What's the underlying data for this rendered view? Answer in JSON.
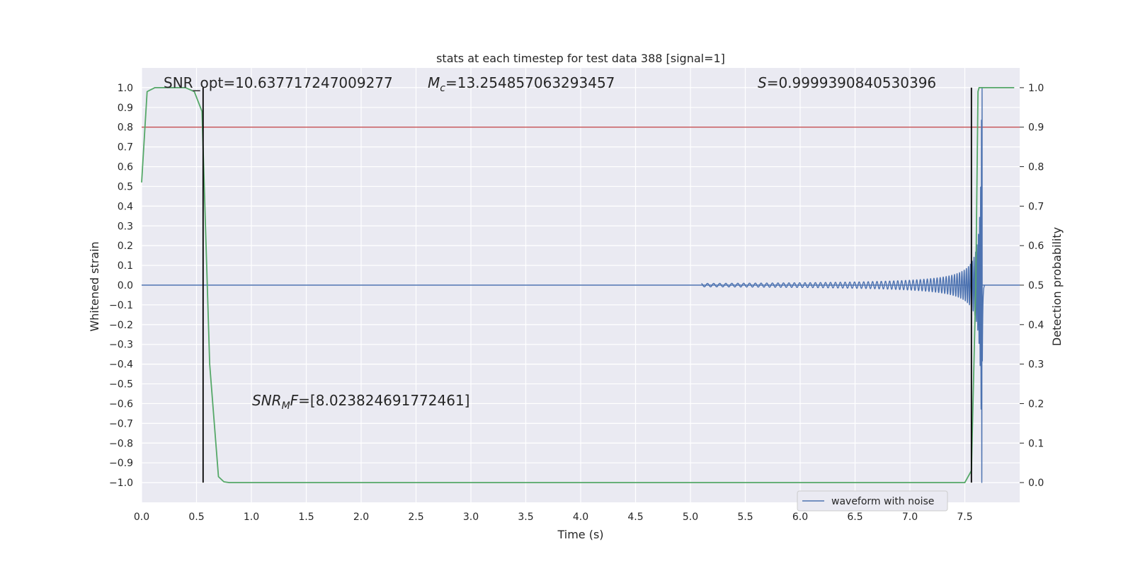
{
  "chart_data": {
    "type": "line",
    "title": "stats at each timestep for test data 388 [signal=1]",
    "xlabel": "Time (s)",
    "ylabel_left": "Whitened strain",
    "ylabel_right": "Detection probability",
    "xlim": [
      0,
      8.0
    ],
    "ylim_left": [
      -1.1,
      1.1
    ],
    "ylim_right": [
      -0.05,
      1.05
    ],
    "x_ticks": [
      "0.0",
      "0.5",
      "1.0",
      "1.5",
      "2.0",
      "2.5",
      "3.0",
      "3.5",
      "4.0",
      "4.5",
      "5.0",
      "5.5",
      "6.0",
      "6.5",
      "7.0",
      "7.5"
    ],
    "y_left_ticks": [
      "1.0",
      "0.9",
      "0.8",
      "0.7",
      "0.6",
      "0.5",
      "0.4",
      "0.3",
      "0.2",
      "0.1",
      "0.0",
      "−0.1",
      "−0.2",
      "−0.3",
      "−0.4",
      "−0.5",
      "−0.6",
      "−0.7",
      "−0.8",
      "−0.9",
      "−1.0"
    ],
    "y_right_ticks": [
      "1.0",
      "0.9",
      "0.8",
      "0.7",
      "0.6",
      "0.5",
      "0.4",
      "0.3",
      "0.2",
      "0.1",
      "0.0"
    ],
    "grid": true,
    "legend_position": "lower-right",
    "annotations": {
      "snr_opt": "SNR_opt=10.637717247009277",
      "mc_symbol": "M",
      "mc_sub": "c",
      "mc_value": "=13.254857063293457",
      "s_symbol": "S",
      "s_value": "=0.9999390840530396",
      "snrmf_symbol": "SNR",
      "snrmf_sub": "M",
      "snrmf_F": "F",
      "snrmf_value": "=[8.023824691772461]"
    },
    "series": [
      {
        "name": "waveform with noise",
        "axis": "left",
        "color": "#4c72b0",
        "kind": "chirp",
        "start": 5.1,
        "merger": 7.66,
        "end": 7.68,
        "peak_amplitude": 1.0
      },
      {
        "axis": "right",
        "color": "#55a868",
        "x": [
          0.0,
          0.05,
          0.12,
          0.2,
          0.3,
          0.4,
          0.48,
          0.55,
          0.62,
          0.7,
          0.75,
          0.8,
          1.0,
          2.0,
          3.0,
          4.0,
          5.0,
          6.0,
          7.0,
          7.5,
          7.56,
          7.6,
          7.62,
          7.63,
          7.65,
          7.7,
          7.8,
          7.95
        ],
        "y": [
          0.76,
          0.99,
          1.0,
          1.0,
          1.0,
          1.0,
          0.99,
          0.94,
          0.3,
          0.015,
          0.002,
          0.0,
          0.0,
          0.0,
          0.0,
          0.0,
          0.0,
          0.0,
          0.0,
          0.0,
          0.03,
          0.5,
          0.99,
          1.0,
          1.0,
          1.0,
          1.0,
          1.0
        ]
      }
    ],
    "threshold_line": {
      "axis": "right",
      "value": 0.9,
      "color": "#c44e52"
    },
    "vertical_markers": [
      {
        "x": 0.56,
        "color": "#000000"
      },
      {
        "x": 7.56,
        "color": "#000000"
      }
    ],
    "legend": {
      "entries": [
        "waveform with noise"
      ]
    }
  }
}
